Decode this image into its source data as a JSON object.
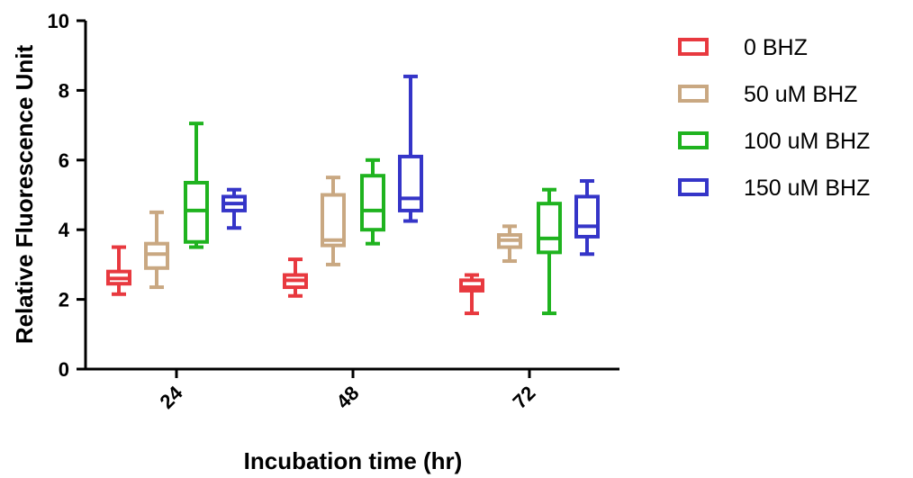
{
  "chart_data": {
    "type": "boxplot",
    "xlabel": "Incubation time (hr)",
    "ylabel": "Relative Fluorescence Unit",
    "ylim": [
      0,
      10
    ],
    "yticks": [
      0,
      2,
      4,
      6,
      8,
      10
    ],
    "categories": [
      "24",
      "48",
      "72"
    ],
    "legend_position": "right",
    "grid": false,
    "series": [
      {
        "name": "0 BHZ",
        "color": "#e8393f",
        "boxes": [
          {
            "min": 2.15,
            "q1": 2.45,
            "median": 2.6,
            "q3": 2.8,
            "max": 3.5
          },
          {
            "min": 2.1,
            "q1": 2.35,
            "median": 2.55,
            "q3": 2.7,
            "max": 3.15
          },
          {
            "min": 1.6,
            "q1": 2.25,
            "median": 2.35,
            "q3": 2.55,
            "max": 2.7
          }
        ]
      },
      {
        "name": "50 uM BHZ",
        "color": "#c9a882",
        "boxes": [
          {
            "min": 2.35,
            "q1": 2.9,
            "median": 3.3,
            "q3": 3.6,
            "max": 4.5
          },
          {
            "min": 3.0,
            "q1": 3.55,
            "median": 3.7,
            "q3": 5.0,
            "max": 5.5
          },
          {
            "min": 3.1,
            "q1": 3.5,
            "median": 3.7,
            "q3": 3.85,
            "max": 4.1
          }
        ]
      },
      {
        "name": "100 uM BHZ",
        "color": "#1fb31f",
        "boxes": [
          {
            "min": 3.5,
            "q1": 3.65,
            "median": 4.55,
            "q3": 5.35,
            "max": 7.05
          },
          {
            "min": 3.6,
            "q1": 4.0,
            "median": 4.55,
            "q3": 5.55,
            "max": 6.0
          },
          {
            "min": 1.6,
            "q1": 3.35,
            "median": 3.75,
            "q3": 4.75,
            "max": 5.15
          }
        ]
      },
      {
        "name": "150 uM BHZ",
        "color": "#3535c8",
        "boxes": [
          {
            "min": 4.05,
            "q1": 4.55,
            "median": 4.75,
            "q3": 4.95,
            "max": 5.15
          },
          {
            "min": 4.25,
            "q1": 4.55,
            "median": 4.9,
            "q3": 6.1,
            "max": 8.4
          },
          {
            "min": 3.3,
            "q1": 3.8,
            "median": 4.1,
            "q3": 4.95,
            "max": 5.4
          }
        ]
      }
    ]
  }
}
